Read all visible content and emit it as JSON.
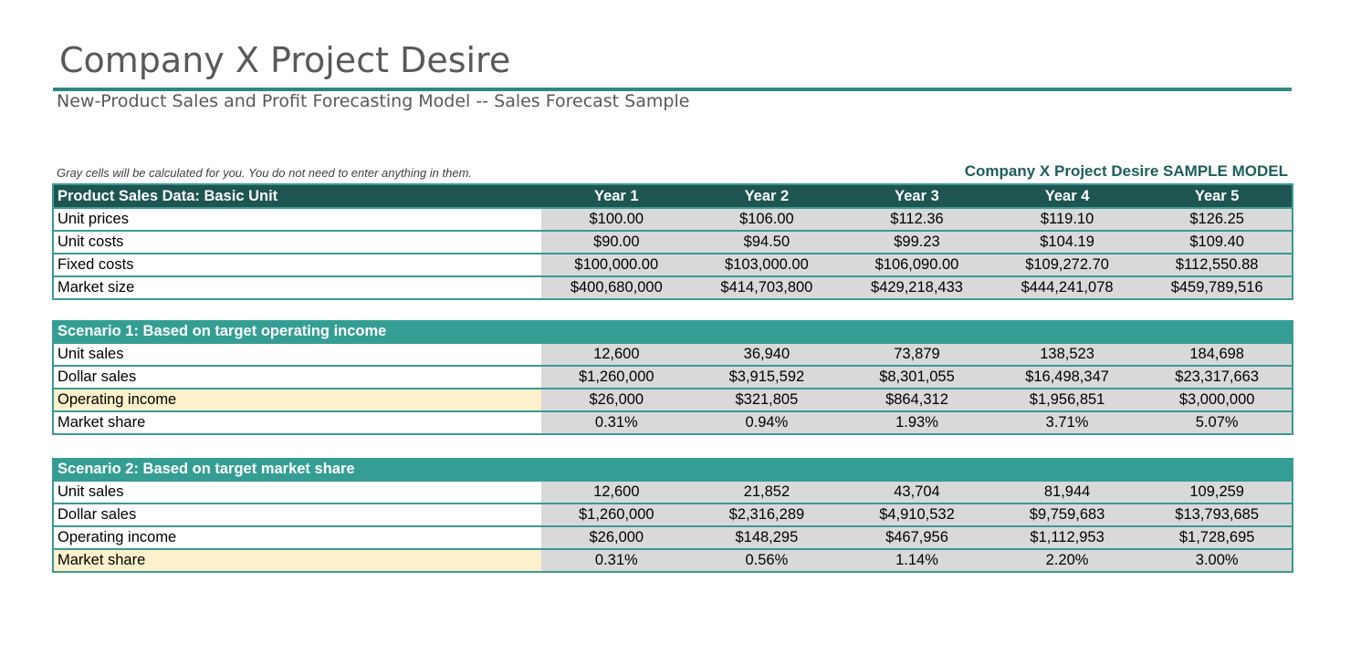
{
  "header": {
    "title": "Company X Project Desire",
    "subtitle": "New-Product Sales and Profit Forecasting Model -- Sales Forecast Sample",
    "note": "Gray cells will be calculated for you. You do not need to enter anything in them.",
    "model_label": "Company X Project Desire SAMPLE MODEL"
  },
  "colors": {
    "accent": "#31877f",
    "header_dark": "#1e5550",
    "header_teal": "#359e94",
    "calc_gray": "#d9d9d9",
    "highlight": "#fdf0cc"
  },
  "years": [
    "Year 1",
    "Year 2",
    "Year 3",
    "Year 4",
    "Year 5"
  ],
  "basic": {
    "title": "Product Sales Data: Basic Unit",
    "rows": [
      {
        "label": "Unit prices",
        "values": [
          "$100.00",
          "$106.00",
          "$112.36",
          "$119.10",
          "$126.25"
        ]
      },
      {
        "label": "Unit costs",
        "values": [
          "$90.00",
          "$94.50",
          "$99.23",
          "$104.19",
          "$109.40"
        ]
      },
      {
        "label": "Fixed costs",
        "values": [
          "$100,000.00",
          "$103,000.00",
          "$106,090.00",
          "$109,272.70",
          "$112,550.88"
        ]
      },
      {
        "label": "Market size",
        "values": [
          "$400,680,000",
          "$414,703,800",
          "$429,218,433",
          "$444,241,078",
          "$459,789,516"
        ]
      }
    ]
  },
  "scenario1": {
    "title": "Scenario 1: Based on target operating income",
    "rows": [
      {
        "label": "Unit sales",
        "values": [
          "12,600",
          "36,940",
          "73,879",
          "138,523",
          "184,698"
        ]
      },
      {
        "label": "Dollar sales",
        "values": [
          "$1,260,000",
          "$3,915,592",
          "$8,301,055",
          "$16,498,347",
          "$23,317,663"
        ]
      },
      {
        "label": "Operating income",
        "values": [
          "$26,000",
          "$321,805",
          "$864,312",
          "$1,956,851",
          "$3,000,000"
        ]
      },
      {
        "label": "Market share",
        "values": [
          "0.31%",
          "0.94%",
          "1.93%",
          "3.71%",
          "5.07%"
        ]
      }
    ]
  },
  "scenario2": {
    "title": "Scenario 2: Based on target market share",
    "rows": [
      {
        "label": "Unit sales",
        "values": [
          "12,600",
          "21,852",
          "43,704",
          "81,944",
          "109,259"
        ]
      },
      {
        "label": "Dollar sales",
        "values": [
          "$1,260,000",
          "$2,316,289",
          "$4,910,532",
          "$9,759,683",
          "$13,793,685"
        ]
      },
      {
        "label": "Operating income",
        "values": [
          "$26,000",
          "$148,295",
          "$467,956",
          "$1,112,953",
          "$1,728,695"
        ]
      },
      {
        "label": "Market share",
        "values": [
          "0.31%",
          "0.56%",
          "1.14%",
          "2.20%",
          "3.00%"
        ]
      }
    ]
  }
}
